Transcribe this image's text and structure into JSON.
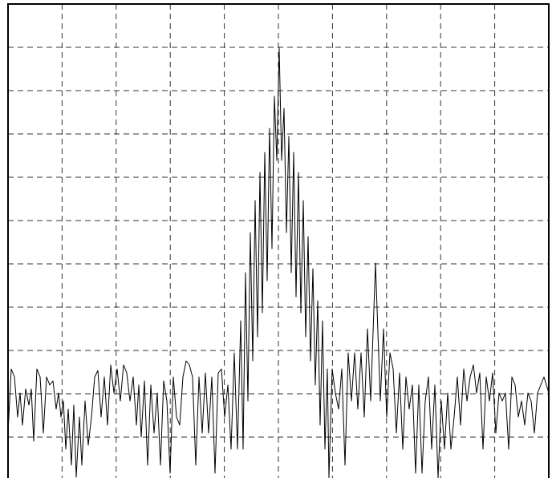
{
  "chart_data": {
    "type": "line",
    "color": "#000000",
    "grid": true,
    "xlim": [
      0,
      674
    ],
    "xticks": [
      67.4,
      134.8,
      202.2,
      269.6,
      337,
      404.4,
      471.8,
      539.2,
      606.6
    ],
    "ylim": [
      0,
      594
    ],
    "yticks": [
      54,
      108,
      162,
      216,
      270,
      324,
      378,
      432,
      486,
      540
    ],
    "x": [
      0,
      4,
      8,
      12,
      15,
      18,
      22,
      26,
      29,
      32,
      36,
      40,
      44,
      48,
      52,
      56,
      60,
      63,
      66,
      69,
      72,
      75,
      79,
      82,
      85,
      89,
      92,
      96,
      100,
      104,
      108,
      112,
      116,
      120,
      124,
      128,
      132,
      136,
      140,
      144,
      148,
      152,
      156,
      160,
      163,
      166,
      170,
      174,
      178,
      182,
      186,
      190,
      194,
      198,
      202,
      206,
      210,
      214,
      218,
      222,
      226,
      230,
      234,
      238,
      242,
      246,
      250,
      254,
      258,
      262,
      266,
      270,
      274,
      278,
      282,
      286,
      290,
      293,
      296,
      299,
      302,
      305,
      308,
      311,
      314,
      317,
      320,
      323,
      326,
      329,
      332,
      335,
      338,
      341,
      344,
      347,
      350,
      353,
      356,
      359,
      362,
      365,
      368,
      371,
      374,
      377,
      380,
      383,
      386,
      389,
      392,
      395,
      398,
      400,
      404,
      408,
      412,
      416,
      420,
      424,
      428,
      432,
      436,
      440,
      444,
      448,
      452,
      458,
      464,
      468,
      472,
      476,
      480,
      484,
      488,
      492,
      496,
      500,
      504,
      508,
      512,
      516,
      520,
      524,
      528,
      532,
      536,
      540,
      544,
      548,
      552,
      556,
      560,
      564,
      568,
      572,
      576,
      580,
      584,
      588,
      592,
      596,
      600,
      604,
      608,
      612,
      616,
      620,
      624,
      628,
      632,
      636,
      640,
      644,
      648,
      652,
      656,
      660,
      664,
      668,
      674
    ],
    "values": [
      59,
      139,
      129,
      79,
      109,
      69,
      114,
      94,
      114,
      49,
      139,
      129,
      59,
      129,
      119,
      124,
      89,
      109,
      79,
      99,
      39,
      89,
      19,
      94,
      4,
      79,
      19,
      99,
      44,
      79,
      129,
      137,
      79,
      129,
      69,
      144,
      109,
      139,
      99,
      144,
      134,
      99,
      129,
      69,
      119,
      54,
      124,
      19,
      119,
      59,
      109,
      19,
      124,
      99,
      9,
      129,
      79,
      69,
      129,
      149,
      144,
      129,
      19,
      129,
      59,
      134,
      59,
      129,
      9,
      134,
      139,
      79,
      119,
      39,
      159,
      39,
      199,
      39,
      259,
      99,
      309,
      149,
      349,
      179,
      384,
      209,
      409,
      249,
      439,
      289,
      479,
      399,
      539,
      399,
      464,
      309,
      429,
      259,
      409,
      229,
      384,
      209,
      349,
      179,
      304,
      149,
      264,
      119,
      224,
      69,
      199,
      39,
      139,
      3,
      139,
      109,
      89,
      139,
      19,
      159,
      99,
      159,
      89,
      159,
      79,
      189,
      99,
      271,
      99,
      189,
      79,
      159,
      139,
      59,
      134,
      39,
      129,
      89,
      119,
      9,
      119,
      9,
      99,
      129,
      39,
      119,
      3,
      99,
      39,
      109,
      39,
      79,
      129,
      69,
      139,
      99,
      129,
      144,
      109,
      134,
      39,
      129,
      99,
      134,
      59,
      109,
      99,
      109,
      39,
      129,
      119,
      79,
      99,
      69,
      109,
      99,
      59,
      109,
      119,
      129,
      109
    ]
  }
}
